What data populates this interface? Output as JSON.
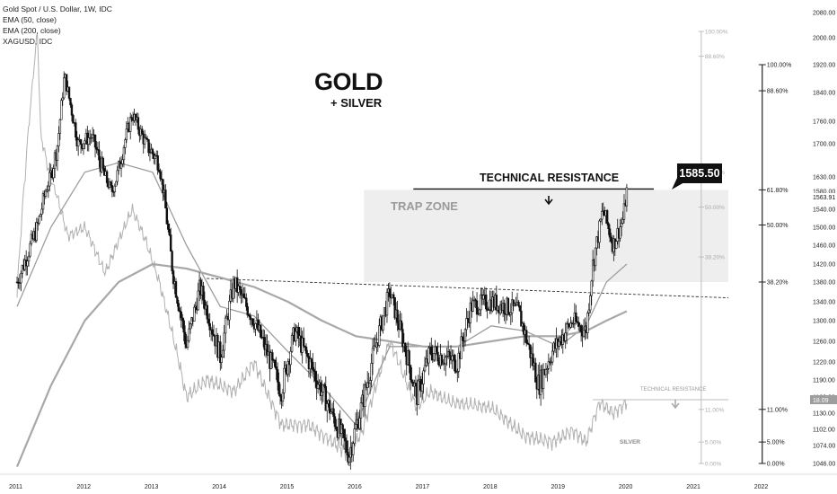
{
  "legend": {
    "line1": "Gold Spot / U.S. Dollar, 1W, IDC",
    "line2": "EMA (50, close)",
    "line3": "EMA (200, close)",
    "line4": "XAGUSD, IDC"
  },
  "annotations": {
    "title": "GOLD",
    "subtitle": "+ SILVER",
    "technical_resistance": "TECHNICAL RESISTANCE",
    "trap_zone": "TRAP ZONE",
    "small_resistance": "TECHNICAL RESISTANCE",
    "silver_label": "SILVER",
    "price_callout": "1585.50"
  },
  "colors": {
    "candles": "#111111",
    "ema50": "#9e9e9e",
    "ema200": "#a8a8a8",
    "silver": "#b0b0b0",
    "trap_zone": "#eeeeee",
    "fib_right": "#222222",
    "fib_left": "#bdbdbd"
  },
  "chart_data": {
    "type": "line",
    "symbol": "Gold Spot / U.S. Dollar, 1W, IDC",
    "xlim": [
      2011.0,
      2022.6
    ],
    "ylim": [
      1030,
      2090
    ],
    "x_ticks": [
      "2011",
      "2012",
      "2013",
      "2014",
      "2015",
      "2016",
      "2017",
      "2018",
      "2019",
      "2020",
      "2021",
      "2022"
    ],
    "y_ticks": [
      "2080.00",
      "2000.00",
      "1920.00",
      "1840.00",
      "1760.00",
      "1700.00",
      "1630.00",
      "1580.00",
      "1540.00",
      "1500.00",
      "1460.00",
      "1420.00",
      "1380.00",
      "1340.00",
      "1300.00",
      "1260.00",
      "1220.00",
      "1190.00",
      "1160.00",
      "1130.00",
      "1102.00",
      "1074.00",
      "1046.00"
    ],
    "last_price": "1563.91",
    "silver_last": "18.09",
    "series": [
      {
        "name": "Gold Spot / U.S. Dollar, 1W, IDC",
        "x": [
          2011.0,
          2011.3,
          2011.6,
          2011.7,
          2011.9,
          2012.1,
          2012.4,
          2012.7,
          2012.9,
          2013.1,
          2013.3,
          2013.5,
          2013.7,
          2014.0,
          2014.2,
          2014.5,
          2014.9,
          2015.1,
          2015.5,
          2015.9,
          2016.1,
          2016.5,
          2016.9,
          2017.1,
          2017.5,
          2017.7,
          2018.0,
          2018.4,
          2018.7,
          2018.9,
          2019.2,
          2019.4,
          2019.5,
          2019.65,
          2019.8,
          2019.95,
          2020.0
        ],
        "values": [
          1380,
          1500,
          1700,
          1890,
          1700,
          1720,
          1580,
          1780,
          1700,
          1660,
          1400,
          1250,
          1370,
          1230,
          1380,
          1300,
          1170,
          1280,
          1170,
          1060,
          1150,
          1360,
          1160,
          1240,
          1220,
          1330,
          1340,
          1320,
          1180,
          1240,
          1300,
          1280,
          1420,
          1540,
          1460,
          1520,
          1585
        ]
      },
      {
        "name": "EMA (50, close)",
        "x": [
          2011.0,
          2011.5,
          2012.0,
          2012.5,
          2013.0,
          2013.5,
          2014.0,
          2014.5,
          2015.0,
          2015.5,
          2016.0,
          2016.5,
          2017.0,
          2017.5,
          2018.0,
          2018.5,
          2019.0,
          2019.4,
          2019.7,
          2020.0
        ],
        "values": [
          1330,
          1500,
          1640,
          1660,
          1640,
          1460,
          1330,
          1310,
          1240,
          1180,
          1110,
          1250,
          1250,
          1250,
          1290,
          1280,
          1250,
          1290,
          1380,
          1420
        ]
      },
      {
        "name": "EMA (200, close)",
        "x": [
          2011.0,
          2011.5,
          2012.0,
          2012.5,
          2013.0,
          2013.5,
          2014.0,
          2014.5,
          2015.0,
          2015.5,
          2016.0,
          2016.5,
          2017.0,
          2017.5,
          2018.0,
          2018.5,
          2019.0,
          2019.4,
          2019.7,
          2020.0
        ],
        "values": [
          1040,
          1180,
          1300,
          1380,
          1420,
          1410,
          1390,
          1370,
          1340,
          1300,
          1270,
          1260,
          1250,
          1250,
          1260,
          1270,
          1270,
          1280,
          1300,
          1320
        ]
      },
      {
        "name": "XAGUSD, IDC",
        "x": [
          2011.0,
          2011.15,
          2011.3,
          2011.35,
          2011.5,
          2011.75,
          2012.0,
          2012.3,
          2012.7,
          2012.9,
          2013.1,
          2013.5,
          2013.8,
          2014.2,
          2014.5,
          2014.9,
          2015.3,
          2015.9,
          2016.1,
          2016.5,
          2016.9,
          2017.1,
          2017.4,
          2018.0,
          2018.5,
          2018.9,
          2019.2,
          2019.4,
          2019.6,
          2019.8,
          2020.0
        ],
        "values": [
          1360,
          1700,
          2020,
          1720,
          1620,
          1480,
          1500,
          1400,
          1540,
          1470,
          1380,
          1160,
          1190,
          1170,
          1220,
          1110,
          1110,
          1060,
          1100,
          1260,
          1140,
          1170,
          1150,
          1140,
          1090,
          1080,
          1100,
          1080,
          1150,
          1130,
          1150
        ]
      }
    ],
    "fibonacci_right": {
      "levels": [
        "100.00%",
        "88.60%",
        "61.80%",
        "50.00%",
        "38.20%",
        "11.00%",
        "5.00%",
        "0.00%"
      ],
      "prices": [
        1920,
        1845,
        1585,
        1505,
        1380,
        1137,
        1080,
        1046
      ]
    },
    "fibonacci_left": {
      "levels": [
        "100.00%",
        "88.60%",
        "61.80%",
        "50.00%",
        "38.20%",
        "11.00%",
        "5.00%",
        "0.00%"
      ],
      "prices": [
        2020,
        1945,
        1640,
        1545,
        1435,
        1137,
        1080,
        1046
      ]
    }
  }
}
